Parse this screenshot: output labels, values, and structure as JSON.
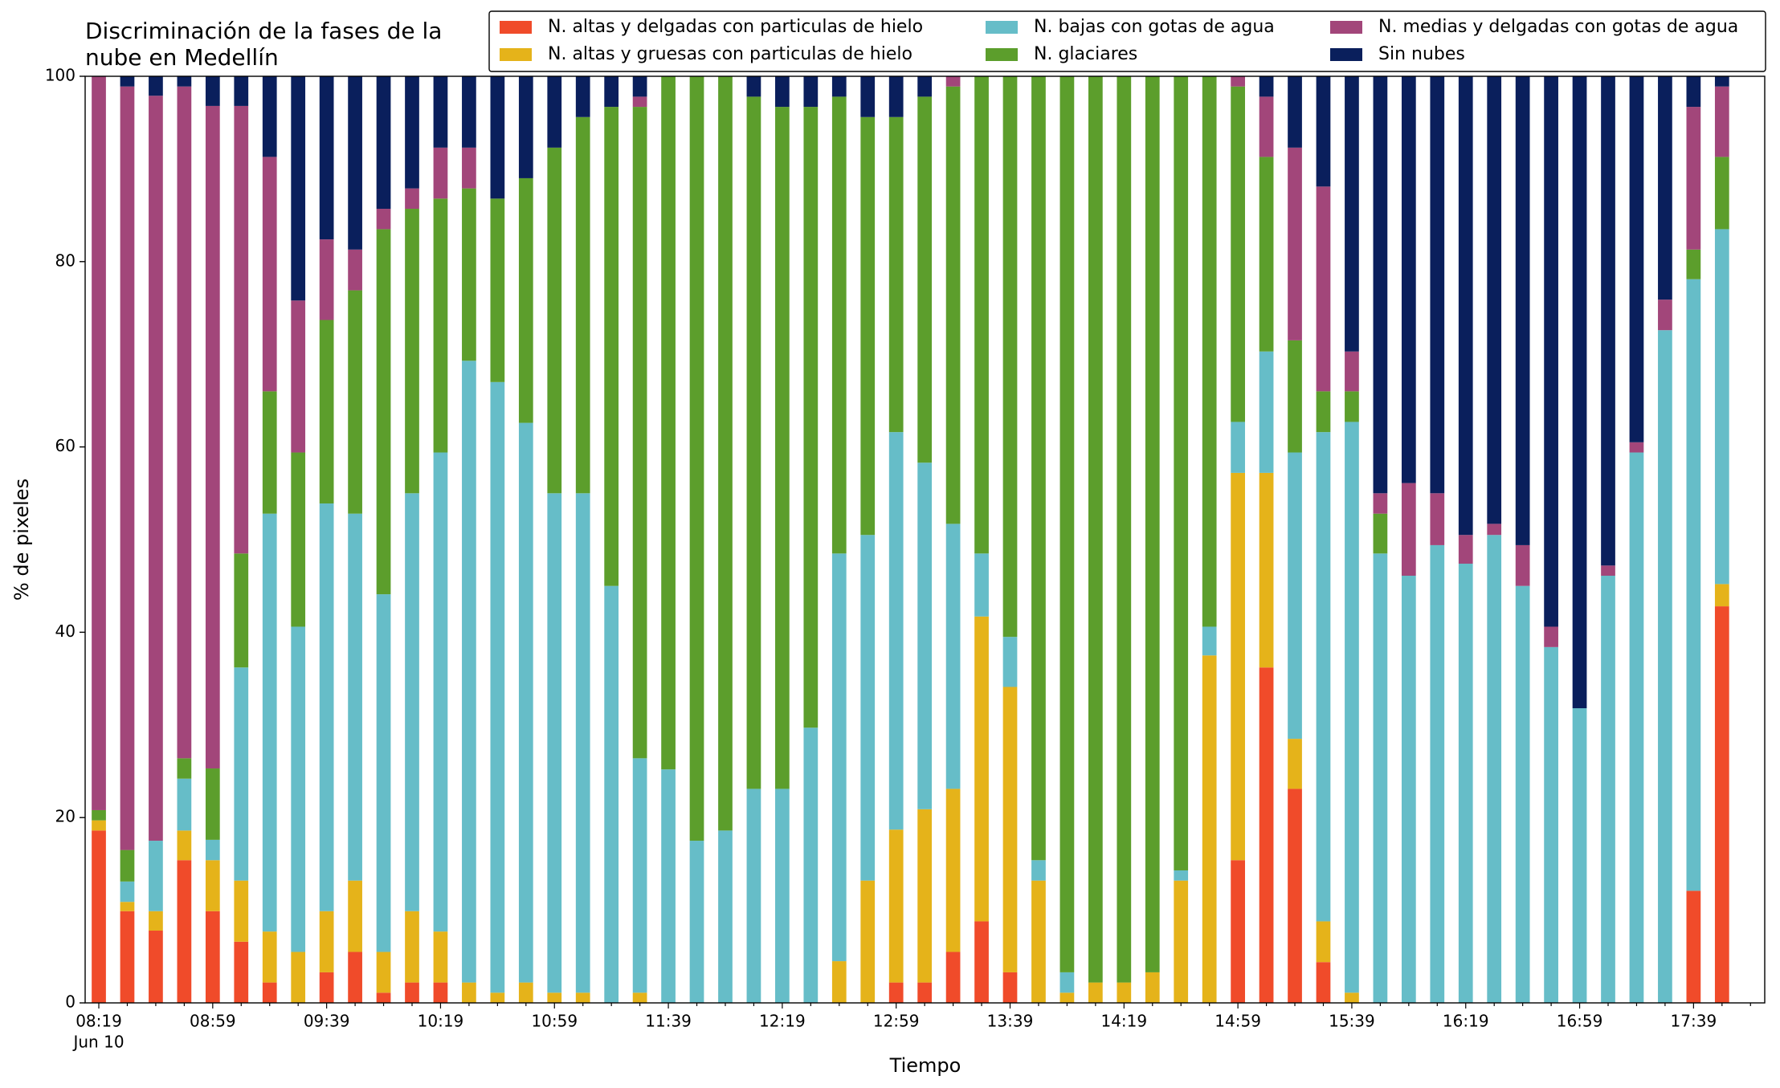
{
  "chart_data": {
    "type": "stacked_bar",
    "title": [
      "Discriminación de la fases de la",
      "nube en Medellín"
    ],
    "xlabel": "Tiempo",
    "ylabel": "% de pixeles",
    "x_date": "Jun 10",
    "categories": [
      "08:19",
      null,
      null,
      null,
      "08:59",
      null,
      null,
      null,
      "09:39",
      null,
      null,
      null,
      "10:19",
      null,
      null,
      null,
      "10:59",
      null,
      null,
      null,
      "11:39",
      null,
      null,
      null,
      "12:19",
      null,
      null,
      null,
      "12:59",
      null,
      null,
      null,
      "13:39",
      null,
      null,
      null,
      "14:19",
      null,
      null,
      null,
      "14:59",
      null,
      null,
      null,
      "15:39",
      null,
      null,
      null,
      "16:19",
      null,
      null,
      null,
      "16:59",
      null,
      null,
      null,
      "17:39",
      null
    ],
    "series": [
      {
        "name": "N. altas y delgadas con particulas de hielo",
        "color": "#f04b2a",
        "values": [
          18.6,
          9.9,
          7.8,
          15.4,
          9.9,
          6.6,
          2.2,
          0,
          3.3,
          5.5,
          1.1,
          2.2,
          2.2,
          0,
          0,
          0,
          0,
          0,
          0,
          0,
          0,
          0,
          0,
          0,
          0,
          0,
          0,
          0,
          2.2,
          2.2,
          5.5,
          8.8,
          3.3,
          0,
          0,
          0,
          0,
          0,
          0,
          0,
          15.4,
          36.2,
          23.1,
          4.4,
          0,
          0,
          0,
          0,
          0,
          0,
          0,
          0,
          0,
          0,
          0,
          0,
          12.1,
          42.8
        ]
      },
      {
        "name": "N. altas y gruesas con particulas de hielo",
        "color": "#e5b31a",
        "values": [
          1.1,
          1.0,
          2.1,
          3.2,
          5.5,
          6.6,
          5.5,
          5.5,
          6.6,
          7.7,
          4.4,
          7.7,
          5.5,
          2.2,
          1.1,
          2.2,
          1.1,
          1.1,
          0,
          1.1,
          0,
          0,
          0,
          0,
          0,
          0,
          4.5,
          13.2,
          16.5,
          18.7,
          17.6,
          32.9,
          30.8,
          13.2,
          1.1,
          2.2,
          2.2,
          3.3,
          13.2,
          37.5,
          41.8,
          21,
          5.4,
          4.4,
          1.1,
          0,
          0,
          0,
          0,
          0,
          0,
          0,
          0,
          0,
          0,
          0,
          0,
          2.4
        ]
      },
      {
        "name": "N. bajas con gotas de agua",
        "color": "#66bdc8",
        "values": [
          0,
          2.2,
          7.6,
          5.6,
          2.2,
          23,
          45.1,
          35.1,
          44,
          39.6,
          38.6,
          45.1,
          51.7,
          67.1,
          65.9,
          60.4,
          53.9,
          53.9,
          45,
          25.3,
          25.2,
          17.5,
          18.6,
          23.1,
          23.1,
          29.7,
          44,
          37.3,
          42.9,
          37.4,
          28.6,
          6.8,
          5.4,
          2.2,
          2.2,
          0,
          0,
          0,
          1.1,
          3.1,
          5.5,
          13.1,
          30.9,
          52.8,
          61.6,
          48.5,
          46.1,
          49.4,
          47.4,
          50.5,
          45,
          38.4,
          31.8,
          46.1,
          59.4,
          72.6,
          66,
          38.3
        ]
      },
      {
        "name": "N. glaciares",
        "color": "#5c9e2c",
        "values": [
          1.1,
          3.4,
          0,
          2.2,
          7.7,
          12.3,
          13.2,
          18.8,
          19.8,
          24.1,
          39.4,
          30.7,
          27.4,
          18.6,
          19.8,
          26.4,
          37.3,
          40.6,
          51.7,
          70.3,
          74.8,
          82.5,
          81.4,
          74.7,
          73.6,
          67,
          49.3,
          45.1,
          34,
          39.5,
          47.2,
          51.5,
          60.5,
          84.6,
          96.7,
          97.8,
          97.8,
          96.7,
          85.7,
          59.4,
          36.2,
          21,
          12.1,
          4.4,
          3.3,
          4.3,
          0,
          0,
          0,
          0,
          0,
          0,
          0,
          0,
          0,
          0,
          3.2,
          7.8
        ]
      },
      {
        "name": "N. medias y delgadas con gotas de agua",
        "color": "#a2467a",
        "values": [
          79.2,
          82.4,
          80.4,
          72.5,
          71.5,
          48.3,
          25.3,
          16.4,
          8.7,
          4.4,
          2.2,
          2.2,
          5.5,
          4.4,
          0,
          0,
          0,
          0,
          0,
          1.1,
          0,
          0,
          0,
          0,
          0,
          0,
          0,
          0,
          0,
          0,
          1.1,
          0,
          0,
          0,
          0,
          0,
          0,
          0,
          0,
          0,
          1.1,
          6.5,
          20.8,
          22.1,
          4.3,
          2.2,
          10,
          5.6,
          3.1,
          1.2,
          4.4,
          2.2,
          0,
          1.1,
          1.1,
          3.3,
          15.4,
          7.6
        ]
      },
      {
        "name": "Sin nubes",
        "color": "#0a1f5c",
        "values": [
          0,
          1.1,
          2.1,
          1.1,
          3.2,
          3.2,
          8.7,
          24.2,
          17.6,
          18.7,
          14.3,
          12.1,
          7.7,
          7.7,
          13.2,
          11,
          7.7,
          4.4,
          3.3,
          2.2,
          0,
          0,
          0,
          2.2,
          3.3,
          3.3,
          2.2,
          4.4,
          4.4,
          2.2,
          0,
          0,
          0,
          0,
          0,
          0,
          0,
          0,
          0,
          0,
          0,
          2.2,
          7.7,
          11.9,
          29.7,
          45,
          43.9,
          45,
          49.5,
          48.3,
          50.6,
          59.4,
          68.2,
          52.8,
          39.5,
          24.1,
          3.3,
          1.1
        ]
      }
    ],
    "ylim": [
      0,
      100
    ],
    "yticks": [
      0,
      20,
      40,
      60,
      80,
      100
    ],
    "legend": "upper right"
  }
}
